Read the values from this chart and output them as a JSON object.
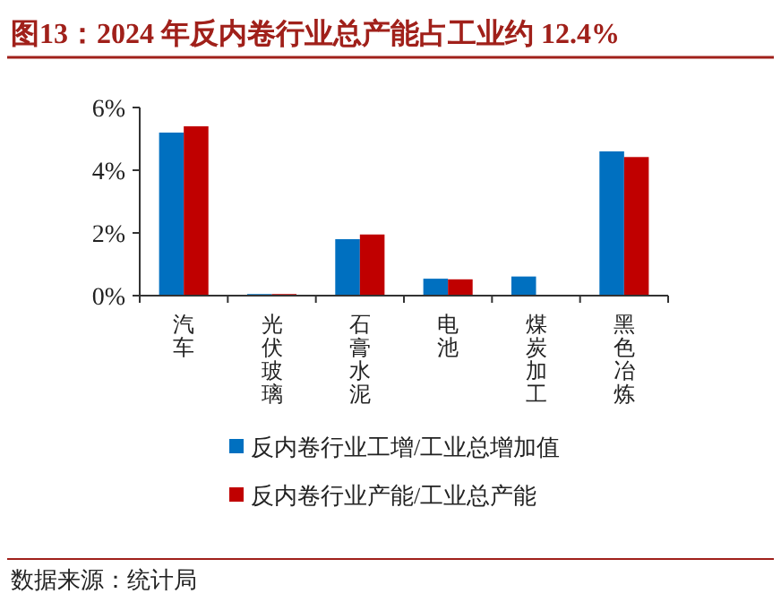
{
  "chart_data": {
    "type": "bar",
    "title": "图13：2024 年反内卷行业总产能占工业约 12.4%",
    "categories": [
      "汽车",
      "光伏玻璃",
      "石膏水泥",
      "电池",
      "煤炭加工",
      "黑色冶炼"
    ],
    "series": [
      {
        "name": "反内卷行业工增/工业总增加值",
        "color": "#0070c0",
        "values": [
          5.2,
          0.05,
          1.8,
          0.54,
          0.61,
          4.6
        ]
      },
      {
        "name": "反内卷行业产能/工业总产能",
        "color": "#c00000",
        "values": [
          5.4,
          0.05,
          1.95,
          0.52,
          0,
          4.42
        ]
      }
    ],
    "ylim": [
      0,
      6
    ],
    "yticks": [
      {
        "value": 0,
        "label": "0%"
      },
      {
        "value": 2,
        "label": "2%"
      },
      {
        "value": 4,
        "label": "4%"
      },
      {
        "value": 6,
        "label": "6%"
      }
    ],
    "grid": false,
    "legend": "bottom",
    "annotations": [
      "数据来源：统计局"
    ]
  }
}
